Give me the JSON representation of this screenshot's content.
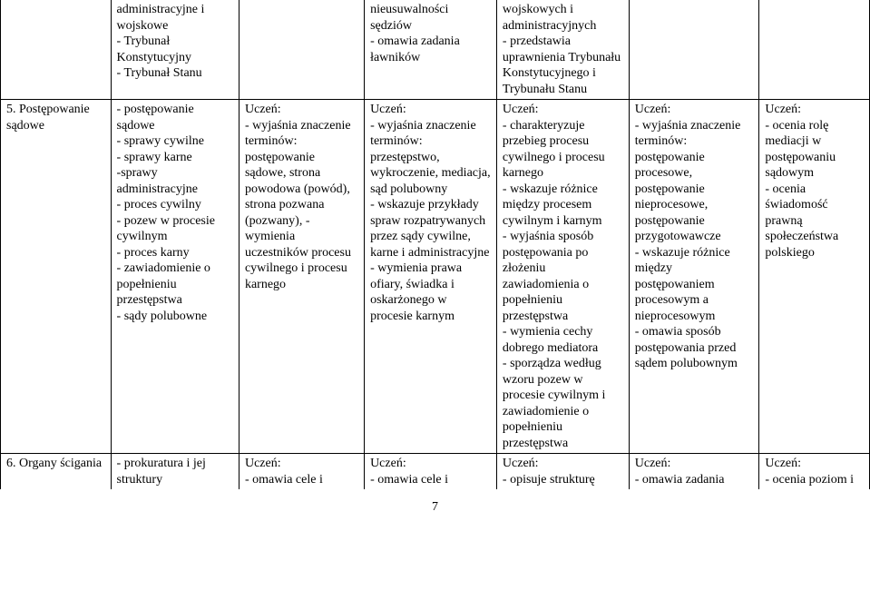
{
  "row0": {
    "col0": "",
    "col1": "administracyjne i wojskowe\n- Trybunał Konstytucyjny\n- Trybunał Stanu",
    "col2": "",
    "col3": "nieusuwalności sędziów\n- omawia zadania ławników",
    "col4": "wojskowych i administracyjnych\n- przedstawia uprawnienia Trybunału Konstytucyjnego i Trybunału Stanu",
    "col5": "",
    "col6": ""
  },
  "row1": {
    "col0": "5. Postępowanie sądowe",
    "col1": "- postępowanie sądowe\n- sprawy cywilne\n- sprawy karne\n-sprawy administracyjne\n- proces cywilny\n- pozew w procesie cywilnym\n- proces karny\n- zawiadomienie o popełnieniu przestępstwa\n- sądy polubowne",
    "col2": "Uczeń:\n- wyjaśnia znaczenie terminów: postępowanie sądowe, strona powodowa (powód), strona pozwana (pozwany), - wymienia uczestników procesu cywilnego i procesu karnego",
    "col3": "Uczeń:\n- wyjaśnia znaczenie terminów: przestępstwo, wykroczenie, mediacja, sąd polubowny\n- wskazuje przykłady spraw rozpatrywanych przez sądy cywilne, karne i administracyjne\n- wymienia prawa ofiary, świadka i oskarżonego w procesie karnym",
    "col4": "Uczeń:\n- charakteryzuje przebieg procesu cywilnego i procesu karnego\n- wskazuje różnice między procesem cywilnym i karnym\n- wyjaśnia sposób postępowania po złożeniu zawiadomienia o popełnieniu przestępstwa\n- wymienia cechy dobrego mediatora\n- sporządza według wzoru pozew w procesie cywilnym i zawiadomienie o popełnieniu przestępstwa",
    "col5": "Uczeń:\n- wyjaśnia znaczenie terminów: postępowanie procesowe, postępowanie nieprocesowe, postępowanie przygotowawcze\n- wskazuje różnice między postępowaniem procesowym a nieprocesowym\n- omawia sposób postępowania przed sądem polubownym",
    "col6": "Uczeń:\n- ocenia rolę mediacji w postępowaniu sądowym\n- ocenia świadomość prawną społeczeństwa polskiego"
  },
  "row2": {
    "col0": "6. Organy ścigania",
    "col1": "- prokuratura i jej struktury",
    "col2": "Uczeń:\n- omawia cele i",
    "col3": "Uczeń:\n- omawia cele i",
    "col4": "Uczeń:\n- opisuje strukturę",
    "col5": "Uczeń:\n- omawia zadania",
    "col6": "Uczeń:\n- ocenia poziom i"
  },
  "page_number": "7"
}
